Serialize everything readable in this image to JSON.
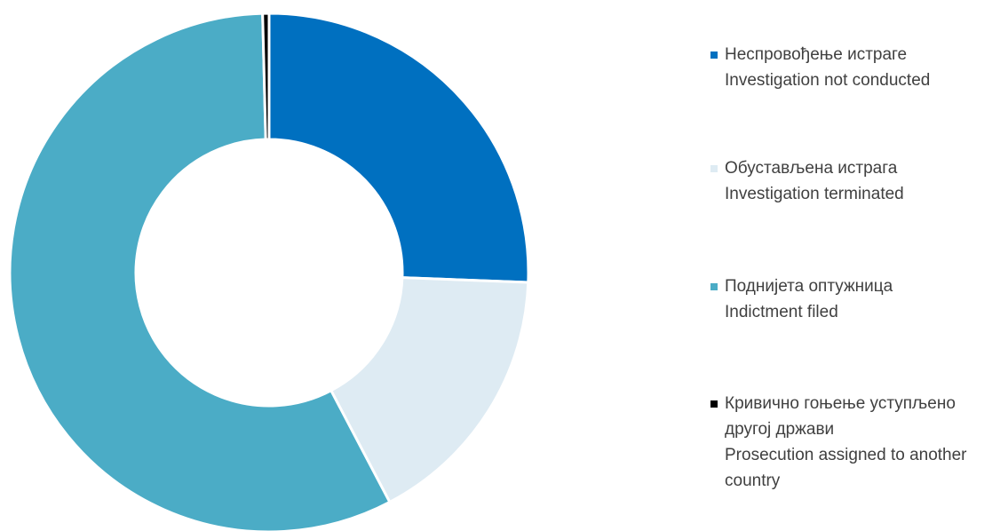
{
  "chart_data": {
    "type": "donut",
    "categories": [
      [
        "Неспровођење истраге",
        "Investigation not conducted"
      ],
      [
        "Обустављена истрага",
        "Investigation terminated"
      ],
      [
        "Поднијета оптужница",
        "Indictment filed"
      ],
      [
        "Кривично гоњење уступљено",
        "другој држави",
        "Prosecution assigned to another",
        "country"
      ]
    ],
    "values": [
      25.6,
      16.7,
      57.3,
      0.4
    ],
    "colors": [
      "#0070c0",
      "#deebf3",
      "#4bacc6",
      "#000000"
    ]
  }
}
